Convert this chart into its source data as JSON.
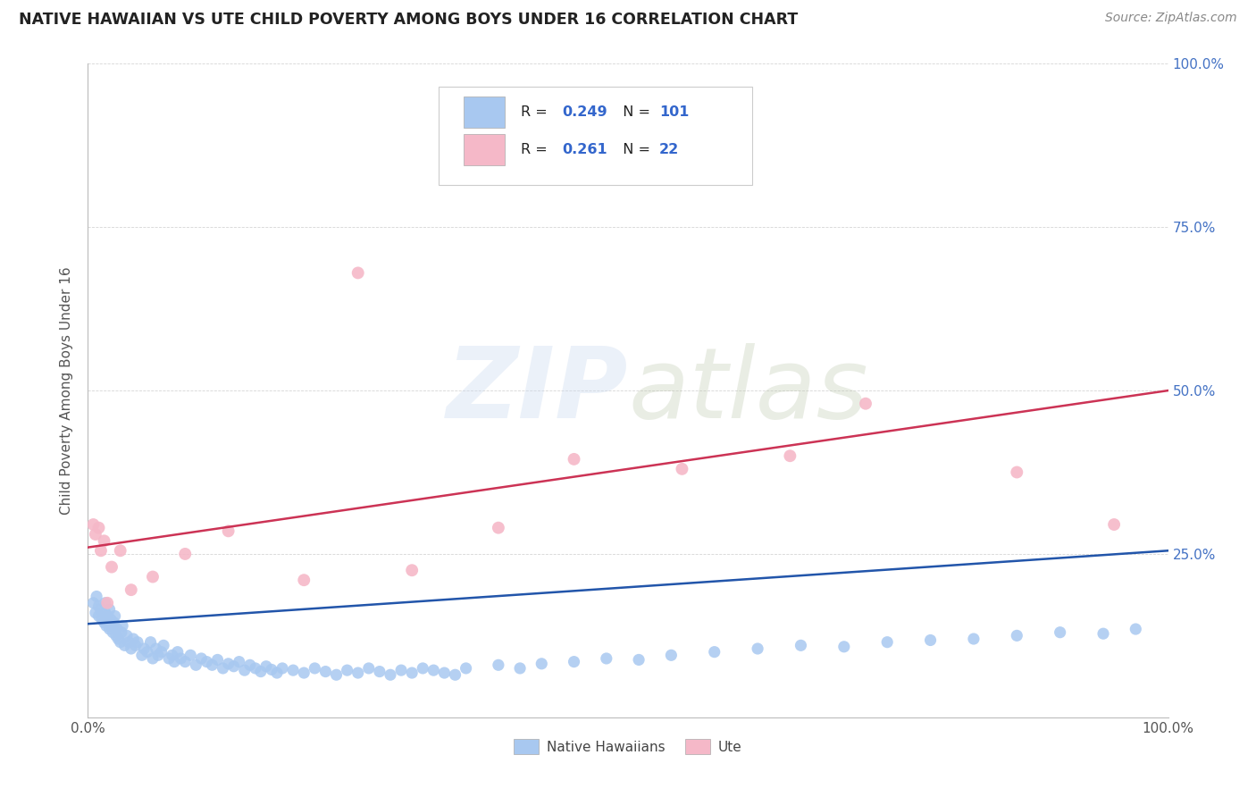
{
  "title": "NATIVE HAWAIIAN VS UTE CHILD POVERTY AMONG BOYS UNDER 16 CORRELATION CHART",
  "source": "Source: ZipAtlas.com",
  "ylabel": "Child Poverty Among Boys Under 16",
  "legend_R_blue": "0.249",
  "legend_N_blue": "101",
  "legend_R_pink": "0.261",
  "legend_N_pink": "22",
  "blue_color": "#a8c8f0",
  "pink_color": "#f5b8c8",
  "line_blue": "#2255aa",
  "line_pink": "#cc3355",
  "text_dark": "#222222",
  "text_blue": "#3366cc",
  "text_red": "#cc3322",
  "axis_color": "#bbbbbb",
  "grid_color": "#cccccc",
  "right_tick_color": "#4472c4",
  "blue_scatter_x": [
    0.005,
    0.007,
    0.008,
    0.01,
    0.01,
    0.012,
    0.013,
    0.015,
    0.016,
    0.016,
    0.017,
    0.018,
    0.019,
    0.02,
    0.02,
    0.021,
    0.022,
    0.023,
    0.024,
    0.025,
    0.026,
    0.027,
    0.028,
    0.03,
    0.031,
    0.032,
    0.034,
    0.036,
    0.038,
    0.04,
    0.042,
    0.044,
    0.046,
    0.05,
    0.052,
    0.055,
    0.058,
    0.06,
    0.063,
    0.065,
    0.068,
    0.07,
    0.075,
    0.078,
    0.08,
    0.083,
    0.086,
    0.09,
    0.095,
    0.1,
    0.105,
    0.11,
    0.115,
    0.12,
    0.125,
    0.13,
    0.135,
    0.14,
    0.145,
    0.15,
    0.155,
    0.16,
    0.165,
    0.17,
    0.175,
    0.18,
    0.19,
    0.2,
    0.21,
    0.22,
    0.23,
    0.24,
    0.25,
    0.26,
    0.27,
    0.28,
    0.29,
    0.3,
    0.31,
    0.32,
    0.33,
    0.34,
    0.35,
    0.38,
    0.4,
    0.42,
    0.45,
    0.48,
    0.51,
    0.54,
    0.58,
    0.62,
    0.66,
    0.7,
    0.74,
    0.78,
    0.82,
    0.86,
    0.9,
    0.94,
    0.97
  ],
  "blue_scatter_y": [
    0.175,
    0.16,
    0.185,
    0.155,
    0.17,
    0.165,
    0.15,
    0.145,
    0.16,
    0.175,
    0.14,
    0.155,
    0.145,
    0.135,
    0.165,
    0.15,
    0.14,
    0.13,
    0.145,
    0.155,
    0.125,
    0.135,
    0.12,
    0.115,
    0.13,
    0.14,
    0.11,
    0.125,
    0.115,
    0.105,
    0.12,
    0.11,
    0.115,
    0.095,
    0.105,
    0.1,
    0.115,
    0.09,
    0.105,
    0.095,
    0.1,
    0.11,
    0.09,
    0.095,
    0.085,
    0.1,
    0.09,
    0.085,
    0.095,
    0.08,
    0.09,
    0.085,
    0.08,
    0.088,
    0.075,
    0.082,
    0.078,
    0.085,
    0.072,
    0.08,
    0.075,
    0.07,
    0.078,
    0.073,
    0.068,
    0.075,
    0.072,
    0.068,
    0.075,
    0.07,
    0.065,
    0.072,
    0.068,
    0.075,
    0.07,
    0.065,
    0.072,
    0.068,
    0.075,
    0.072,
    0.068,
    0.065,
    0.075,
    0.08,
    0.075,
    0.082,
    0.085,
    0.09,
    0.088,
    0.095,
    0.1,
    0.105,
    0.11,
    0.108,
    0.115,
    0.118,
    0.12,
    0.125,
    0.13,
    0.128,
    0.135
  ],
  "pink_scatter_x": [
    0.005,
    0.007,
    0.01,
    0.012,
    0.015,
    0.018,
    0.022,
    0.03,
    0.04,
    0.06,
    0.09,
    0.13,
    0.2,
    0.25,
    0.3,
    0.38,
    0.45,
    0.55,
    0.65,
    0.72,
    0.86,
    0.95
  ],
  "pink_scatter_y": [
    0.295,
    0.28,
    0.29,
    0.255,
    0.27,
    0.175,
    0.23,
    0.255,
    0.195,
    0.215,
    0.25,
    0.285,
    0.21,
    0.68,
    0.225,
    0.29,
    0.395,
    0.38,
    0.4,
    0.48,
    0.375,
    0.295
  ],
  "blue_line_x": [
    0.0,
    1.0
  ],
  "blue_line_y": [
    0.143,
    0.255
  ],
  "pink_line_x": [
    0.0,
    1.0
  ],
  "pink_line_y": [
    0.26,
    0.5
  ],
  "xlim": [
    0.0,
    1.0
  ],
  "ylim": [
    0.0,
    1.0
  ],
  "right_yticks": [
    0.25,
    0.5,
    0.75,
    1.0
  ],
  "right_yticklabels": [
    "25.0%",
    "50.0%",
    "75.0%",
    "100.0%"
  ],
  "grid_yticks": [
    0.0,
    0.25,
    0.5,
    0.75,
    1.0
  ]
}
